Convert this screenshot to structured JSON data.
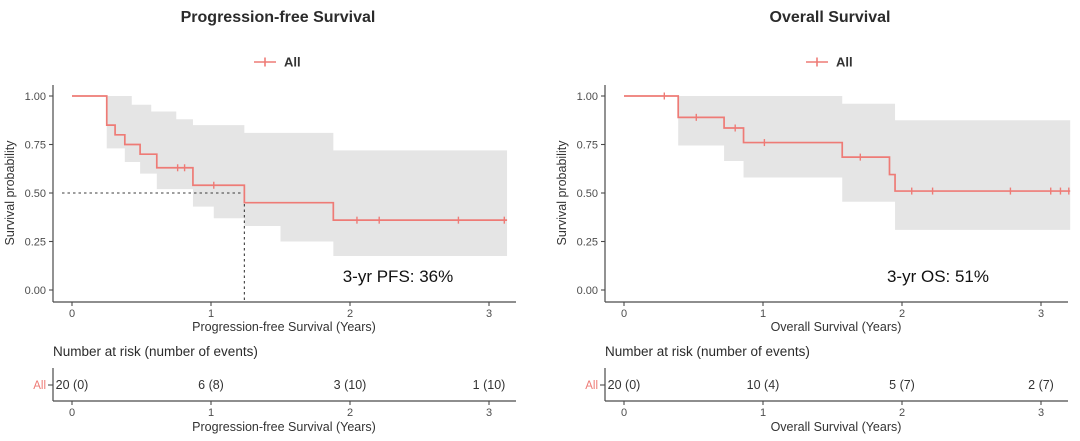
{
  "colors": {
    "curve": "#EE7B76",
    "ci_band": "#E5E5E5",
    "axis": "#4a4a4a",
    "text": "#333333"
  },
  "chart_data": [
    {
      "type": "line",
      "km_step_plot": true,
      "title": "Progression-free Survival",
      "legend": [
        "All"
      ],
      "legend_position": "top",
      "xlabel": "Progression-free Survival (Years)",
      "ylabel": "Survival probability",
      "annotation": "3-yr PFS: 36%",
      "grid": false,
      "xlim": [
        0,
        3.25
      ],
      "ylim": [
        0,
        1
      ],
      "x_ticks": [
        0,
        1,
        2,
        3
      ],
      "x_tick_labels": [
        "0",
        "1",
        "2",
        "3"
      ],
      "y_ticks": [
        0,
        0.25,
        0.5,
        0.75,
        1
      ],
      "y_tick_labels": [
        "0.00",
        "0.25",
        "0.50",
        "0.75",
        "1.00"
      ],
      "median_guide": {
        "x": 1.24,
        "y": 0.5
      },
      "series": [
        {
          "name": "All",
          "steps": [
            [
              0,
              1.0
            ],
            [
              0.25,
              0.85
            ],
            [
              0.31,
              0.8
            ],
            [
              0.38,
              0.75
            ],
            [
              0.49,
              0.7
            ],
            [
              0.61,
              0.63
            ],
            [
              0.87,
              0.54
            ],
            [
              1.24,
              0.45
            ],
            [
              1.88,
              0.36
            ],
            [
              3.13,
              0.36
            ]
          ],
          "censors": [
            [
              0.76,
              0.63
            ],
            [
              0.81,
              0.63
            ],
            [
              1.02,
              0.54
            ],
            [
              2.05,
              0.36
            ],
            [
              2.21,
              0.36
            ],
            [
              2.78,
              0.36
            ],
            [
              3.11,
              0.36
            ]
          ],
          "ci_upper": [
            [
              0.25,
              1.0
            ],
            [
              0.43,
              0.955
            ],
            [
              0.57,
              0.92
            ],
            [
              0.75,
              0.88
            ],
            [
              0.87,
              0.85
            ],
            [
              1.24,
              0.81
            ],
            [
              1.88,
              0.72
            ],
            [
              3.13,
              0.72
            ]
          ],
          "ci_lower": [
            [
              0.25,
              0.73
            ],
            [
              0.38,
              0.66
            ],
            [
              0.49,
              0.6
            ],
            [
              0.61,
              0.52
            ],
            [
              0.87,
              0.43
            ],
            [
              1.02,
              0.37
            ],
            [
              1.24,
              0.33
            ],
            [
              1.5,
              0.25
            ],
            [
              1.88,
              0.175
            ],
            [
              3.13,
              0.175
            ]
          ]
        }
      ],
      "risk_table": {
        "header": "Number at risk (number of events)",
        "row_label": "All",
        "times": [
          0,
          1,
          2,
          3
        ],
        "values": [
          "20 (0)",
          "6 (8)",
          "3 (10)",
          "1 (10)"
        ],
        "xlabel": "Progression-free Survival (Years)",
        "x_tick_labels": [
          "0",
          "1",
          "2",
          "3"
        ]
      }
    },
    {
      "type": "line",
      "km_step_plot": true,
      "title": "Overall Survival",
      "legend": [
        "All"
      ],
      "legend_position": "top",
      "xlabel": "Overall Survival (Years)",
      "ylabel": "Survival probability",
      "annotation": "3-yr OS: 51%",
      "grid": false,
      "xlim": [
        0,
        3.25
      ],
      "ylim": [
        0,
        1
      ],
      "x_ticks": [
        0,
        1,
        2,
        3
      ],
      "x_tick_labels": [
        "0",
        "1",
        "2",
        "3"
      ],
      "y_ticks": [
        0,
        0.25,
        0.5,
        0.75,
        1
      ],
      "y_tick_labels": [
        "0.00",
        "0.25",
        "0.50",
        "0.75",
        "1.00"
      ],
      "median_guide": null,
      "series": [
        {
          "name": "All",
          "steps": [
            [
              0,
              1.0
            ],
            [
              0.39,
              0.89
            ],
            [
              0.72,
              0.835
            ],
            [
              0.86,
              0.76
            ],
            [
              1.57,
              0.685
            ],
            [
              1.91,
              0.595
            ],
            [
              1.95,
              0.51
            ],
            [
              3.21,
              0.51
            ]
          ],
          "censors": [
            [
              0.29,
              1.0
            ],
            [
              0.52,
              0.89
            ],
            [
              0.8,
              0.835
            ],
            [
              1.01,
              0.76
            ],
            [
              1.7,
              0.685
            ],
            [
              2.07,
              0.51
            ],
            [
              2.22,
              0.51
            ],
            [
              2.78,
              0.51
            ],
            [
              3.07,
              0.51
            ],
            [
              3.14,
              0.51
            ],
            [
              3.2,
              0.51
            ]
          ],
          "ci_upper": [
            [
              0.39,
              1.0
            ],
            [
              1.57,
              0.96
            ],
            [
              1.95,
              0.875
            ],
            [
              3.21,
              0.875
            ]
          ],
          "ci_lower": [
            [
              0.39,
              0.745
            ],
            [
              0.72,
              0.665
            ],
            [
              0.86,
              0.58
            ],
            [
              1.57,
              0.455
            ],
            [
              1.95,
              0.31
            ],
            [
              3.21,
              0.31
            ]
          ]
        }
      ],
      "risk_table": {
        "header": "Number at risk (number of events)",
        "row_label": "All",
        "times": [
          0,
          1,
          2,
          3
        ],
        "values": [
          "20 (0)",
          "10 (4)",
          "5 (7)",
          "2 (7)"
        ],
        "xlabel": "Overall Survival (Years)",
        "x_tick_labels": [
          "0",
          "1",
          "2",
          "3"
        ]
      }
    }
  ]
}
